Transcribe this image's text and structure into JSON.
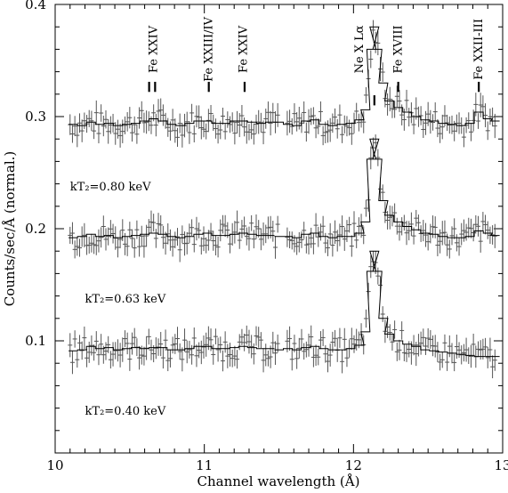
{
  "chart_data": {
    "type": "line",
    "xlabel": "Channel wavelength (Å)",
    "ylabel": "Counts/sec/Å (normal.)",
    "xlim": [
      10,
      13
    ],
    "ylim": [
      0,
      0.4
    ],
    "xticks": [
      "10",
      "11",
      "12",
      "13"
    ],
    "yticks": [
      "0.1",
      "0.2",
      "0.3",
      "0.4"
    ],
    "gap": [
      11.5,
      11.55
    ],
    "series": [
      {
        "name": "kT₂=0.80 keV",
        "label_x": 10.1,
        "label_y": 0.234,
        "base": 0.294,
        "peak": 0.086,
        "points": [
          [
            10.12,
            0.293
          ],
          [
            10.18,
            0.292
          ],
          [
            10.24,
            0.295
          ],
          [
            10.3,
            0.293
          ],
          [
            10.36,
            0.294
          ],
          [
            10.42,
            0.292
          ],
          [
            10.48,
            0.293
          ],
          [
            10.54,
            0.294
          ],
          [
            10.6,
            0.296
          ],
          [
            10.66,
            0.298
          ],
          [
            10.72,
            0.296
          ],
          [
            10.78,
            0.293
          ],
          [
            10.84,
            0.292
          ],
          [
            10.9,
            0.294
          ],
          [
            10.96,
            0.296
          ],
          [
            11.02,
            0.296
          ],
          [
            11.08,
            0.294
          ],
          [
            11.14,
            0.294
          ],
          [
            11.2,
            0.296
          ],
          [
            11.26,
            0.296
          ],
          [
            11.32,
            0.295
          ],
          [
            11.38,
            0.294
          ],
          [
            11.44,
            0.295
          ],
          [
            11.5,
            0.295
          ],
          [
            11.56,
            0.293
          ],
          [
            11.62,
            0.292
          ],
          [
            11.68,
            0.296
          ],
          [
            11.74,
            0.297
          ],
          [
            11.8,
            0.293
          ],
          [
            11.86,
            0.292
          ],
          [
            11.92,
            0.293
          ],
          [
            11.98,
            0.294
          ],
          [
            12.04,
            0.297
          ],
          [
            12.08,
            0.306
          ],
          [
            12.12,
            0.36
          ],
          [
            12.14,
            0.38
          ],
          [
            12.16,
            0.36
          ],
          [
            12.2,
            0.33
          ],
          [
            12.24,
            0.314
          ],
          [
            12.3,
            0.308
          ],
          [
            12.36,
            0.304
          ],
          [
            12.42,
            0.3
          ],
          [
            12.48,
            0.297
          ],
          [
            12.54,
            0.296
          ],
          [
            12.6,
            0.294
          ],
          [
            12.66,
            0.293
          ],
          [
            12.72,
            0.292
          ],
          [
            12.78,
            0.294
          ],
          [
            12.84,
            0.304
          ],
          [
            12.9,
            0.298
          ],
          [
            12.95,
            0.296
          ]
        ]
      },
      {
        "name": "kT₂=0.63 keV",
        "label_x": 10.2,
        "label_y": 0.134,
        "base": 0.194,
        "peak": 0.086,
        "points": [
          [
            10.12,
            0.192
          ],
          [
            10.18,
            0.193
          ],
          [
            10.24,
            0.195
          ],
          [
            10.3,
            0.193
          ],
          [
            10.36,
            0.194
          ],
          [
            10.42,
            0.192
          ],
          [
            10.48,
            0.193
          ],
          [
            10.54,
            0.194
          ],
          [
            10.6,
            0.195
          ],
          [
            10.66,
            0.196
          ],
          [
            10.72,
            0.195
          ],
          [
            10.78,
            0.193
          ],
          [
            10.84,
            0.192
          ],
          [
            10.9,
            0.193
          ],
          [
            10.96,
            0.195
          ],
          [
            11.02,
            0.196
          ],
          [
            11.08,
            0.194
          ],
          [
            11.14,
            0.194
          ],
          [
            11.2,
            0.195
          ],
          [
            11.26,
            0.196
          ],
          [
            11.32,
            0.195
          ],
          [
            11.38,
            0.194
          ],
          [
            11.44,
            0.194
          ],
          [
            11.5,
            0.193
          ],
          [
            11.56,
            0.193
          ],
          [
            11.62,
            0.192
          ],
          [
            11.68,
            0.195
          ],
          [
            11.74,
            0.196
          ],
          [
            11.8,
            0.193
          ],
          [
            11.86,
            0.192
          ],
          [
            11.92,
            0.193
          ],
          [
            11.98,
            0.193
          ],
          [
            12.04,
            0.196
          ],
          [
            12.08,
            0.206
          ],
          [
            12.12,
            0.262
          ],
          [
            12.14,
            0.28
          ],
          [
            12.16,
            0.262
          ],
          [
            12.2,
            0.225
          ],
          [
            12.24,
            0.212
          ],
          [
            12.3,
            0.206
          ],
          [
            12.36,
            0.202
          ],
          [
            12.42,
            0.199
          ],
          [
            12.48,
            0.196
          ],
          [
            12.54,
            0.195
          ],
          [
            12.6,
            0.193
          ],
          [
            12.66,
            0.192
          ],
          [
            12.72,
            0.192
          ],
          [
            12.78,
            0.193
          ],
          [
            12.84,
            0.198
          ],
          [
            12.9,
            0.196
          ],
          [
            12.95,
            0.194
          ]
        ]
      },
      {
        "name": "kT₂=0.40 keV",
        "label_x": 10.2,
        "label_y": 0.034,
        "base": 0.093,
        "peak": 0.086,
        "points": [
          [
            10.12,
            0.091
          ],
          [
            10.18,
            0.092
          ],
          [
            10.24,
            0.095
          ],
          [
            10.3,
            0.093
          ],
          [
            10.36,
            0.094
          ],
          [
            10.42,
            0.092
          ],
          [
            10.48,
            0.093
          ],
          [
            10.54,
            0.094
          ],
          [
            10.6,
            0.093
          ],
          [
            10.66,
            0.094
          ],
          [
            10.72,
            0.094
          ],
          [
            10.78,
            0.092
          ],
          [
            10.84,
            0.092
          ],
          [
            10.9,
            0.093
          ],
          [
            10.96,
            0.095
          ],
          [
            11.02,
            0.095
          ],
          [
            11.08,
            0.093
          ],
          [
            11.14,
            0.093
          ],
          [
            11.2,
            0.094
          ],
          [
            11.26,
            0.095
          ],
          [
            11.32,
            0.094
          ],
          [
            11.38,
            0.093
          ],
          [
            11.44,
            0.093
          ],
          [
            11.5,
            0.092
          ],
          [
            11.56,
            0.093
          ],
          [
            11.62,
            0.092
          ],
          [
            11.68,
            0.094
          ],
          [
            11.74,
            0.095
          ],
          [
            11.8,
            0.093
          ],
          [
            11.86,
            0.092
          ],
          [
            11.92,
            0.092
          ],
          [
            11.98,
            0.093
          ],
          [
            12.04,
            0.096
          ],
          [
            12.08,
            0.108
          ],
          [
            12.12,
            0.162
          ],
          [
            12.14,
            0.18
          ],
          [
            12.16,
            0.162
          ],
          [
            12.2,
            0.12
          ],
          [
            12.24,
            0.106
          ],
          [
            12.3,
            0.1
          ],
          [
            12.36,
            0.097
          ],
          [
            12.42,
            0.095
          ],
          [
            12.48,
            0.092
          ],
          [
            12.54,
            0.091
          ],
          [
            12.6,
            0.09
          ],
          [
            12.66,
            0.089
          ],
          [
            12.72,
            0.088
          ],
          [
            12.78,
            0.087
          ],
          [
            12.84,
            0.086
          ],
          [
            12.9,
            0.086
          ],
          [
            12.95,
            0.086
          ]
        ]
      }
    ],
    "annotations": [
      {
        "text": "Fe XXIV",
        "x": 10.66,
        "y": 0.36
      },
      {
        "text": "Fe XXIII/IV",
        "x": 11.03,
        "y": 0.36
      },
      {
        "text": "Fe XXIV",
        "x": 11.26,
        "y": 0.36
      },
      {
        "text": "Ne X Lα",
        "x": 12.04,
        "y": 0.36
      },
      {
        "text": "Fe XVIII",
        "x": 12.3,
        "y": 0.36
      },
      {
        "text": "Fe XXII-III",
        "x": 12.84,
        "y": 0.36
      }
    ],
    "line_markers": [
      {
        "x": 10.63,
        "y1": 0.322,
        "y2": 0.331
      },
      {
        "x": 10.67,
        "y1": 0.322,
        "y2": 0.331
      },
      {
        "x": 11.03,
        "y1": 0.322,
        "y2": 0.331
      },
      {
        "x": 11.27,
        "y1": 0.322,
        "y2": 0.331
      },
      {
        "x": 12.14,
        "y1": 0.31,
        "y2": 0.319
      },
      {
        "x": 12.3,
        "y1": 0.322,
        "y2": 0.331
      },
      {
        "x": 12.84,
        "y1": 0.322,
        "y2": 0.331
      }
    ]
  }
}
